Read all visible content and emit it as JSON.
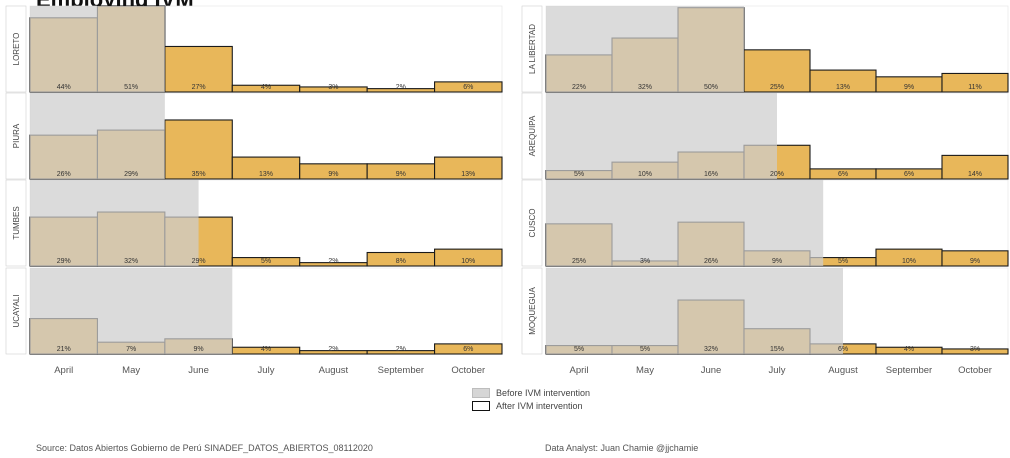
{
  "title": "Employing IVM",
  "colors": {
    "bar_fill": "#e8b75a",
    "bar_edge": "#1a1a1a",
    "before_shade": "#cdcdcd"
  },
  "chart_data": {
    "type": "bar",
    "categories": [
      "April",
      "May",
      "June",
      "July",
      "August",
      "September",
      "October"
    ],
    "ylim": [
      0,
      51
    ],
    "panels": [
      {
        "region": "LORETO",
        "column": 0,
        "row": 0,
        "before_months": 2,
        "values": [
          44,
          51,
          27,
          4,
          3,
          2,
          6
        ],
        "labels": [
          "44%",
          "51%",
          "27%",
          "4%",
          "3%",
          "2%",
          "6%"
        ]
      },
      {
        "region": "PIURA",
        "column": 0,
        "row": 1,
        "before_months": 2,
        "values": [
          26,
          29,
          35,
          13,
          9,
          9,
          13
        ],
        "labels": [
          "26%",
          "29%",
          "35%",
          "13%",
          "9%",
          "9%",
          "13%"
        ]
      },
      {
        "region": "TUMBES",
        "column": 0,
        "row": 2,
        "before_months": 2.5,
        "values": [
          29,
          32,
          29,
          5,
          2,
          8,
          10
        ],
        "labels": [
          "29%",
          "32%",
          "29%",
          "5%",
          "2%",
          "8%",
          "10%"
        ]
      },
      {
        "region": "UCAYALI",
        "column": 0,
        "row": 3,
        "before_months": 3,
        "values": [
          21,
          7,
          9,
          4,
          2,
          2,
          6
        ],
        "labels": [
          "21%",
          "7%",
          "9%",
          "4%",
          "2%",
          "2%",
          "6%"
        ]
      },
      {
        "region": "LA LIBERTAD",
        "column": 1,
        "row": 0,
        "before_months": 3,
        "values": [
          22,
          32,
          50,
          25,
          13,
          9,
          11
        ],
        "labels": [
          "22%",
          "32%",
          "50%",
          "25%",
          "13%",
          "9%",
          "11%"
        ]
      },
      {
        "region": "AREQUIPA",
        "column": 1,
        "row": 1,
        "before_months": 3.5,
        "values": [
          5,
          10,
          16,
          20,
          6,
          6,
          14
        ],
        "labels": [
          "5%",
          "10%",
          "16%",
          "20%",
          "6%",
          "6%",
          "14%"
        ]
      },
      {
        "region": "CUSCO",
        "column": 1,
        "row": 2,
        "before_months": 4.2,
        "values": [
          25,
          3,
          26,
          9,
          5,
          10,
          9
        ],
        "labels": [
          "25%",
          "3%",
          "26%",
          "9%",
          "5%",
          "10%",
          "9%"
        ]
      },
      {
        "region": "MOQUEGUA",
        "column": 1,
        "row": 3,
        "before_months": 4.5,
        "values": [
          5,
          5,
          32,
          15,
          6,
          4,
          3
        ],
        "labels": [
          "5%",
          "5%",
          "32%",
          "15%",
          "6%",
          "4%",
          "3%"
        ]
      }
    ]
  },
  "legend": {
    "before": "Before IVM intervention",
    "after": "After IVM intervention"
  },
  "footer": {
    "source": "Source: Datos Abiertos Gobierno de Perú  SINADEF_DATOS_ABIERTOS_08112020",
    "analyst": "Data Analyst: Juan Chamie  @jjchamie"
  }
}
